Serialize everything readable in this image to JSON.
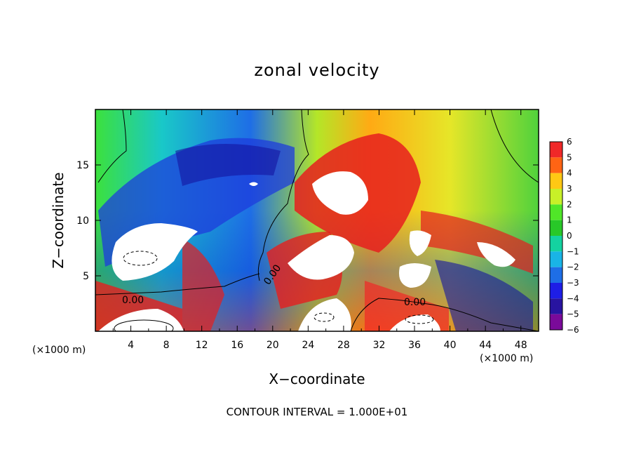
{
  "chart_data": {
    "type": "heatmap",
    "title": "zonal velocity",
    "xlabel": "X−coordinate",
    "ylabel": "Z−coordinate",
    "x_unit_note_left": "(×1000 m)",
    "x_unit_note_right": "(×1000 m)",
    "x_ticks": [
      "4",
      "8",
      "12",
      "16",
      "20",
      "24",
      "28",
      "32",
      "36",
      "40",
      "44",
      "48"
    ],
    "y_ticks": [
      "5",
      "10",
      "15"
    ],
    "xlim": [
      0,
      50
    ],
    "ylim": [
      0,
      20
    ],
    "contour_labels": [
      "0.00",
      "0.00",
      "0.00"
    ],
    "footer": "CONTOUR INTERVAL = 1.000E+01",
    "colorbar": {
      "ticks": [
        "6",
        "5",
        "4",
        "3",
        "2",
        "1",
        "0",
        "−1",
        "−2",
        "−3",
        "−4",
        "−5",
        "−6"
      ],
      "range": [
        -6,
        6
      ]
    }
  }
}
